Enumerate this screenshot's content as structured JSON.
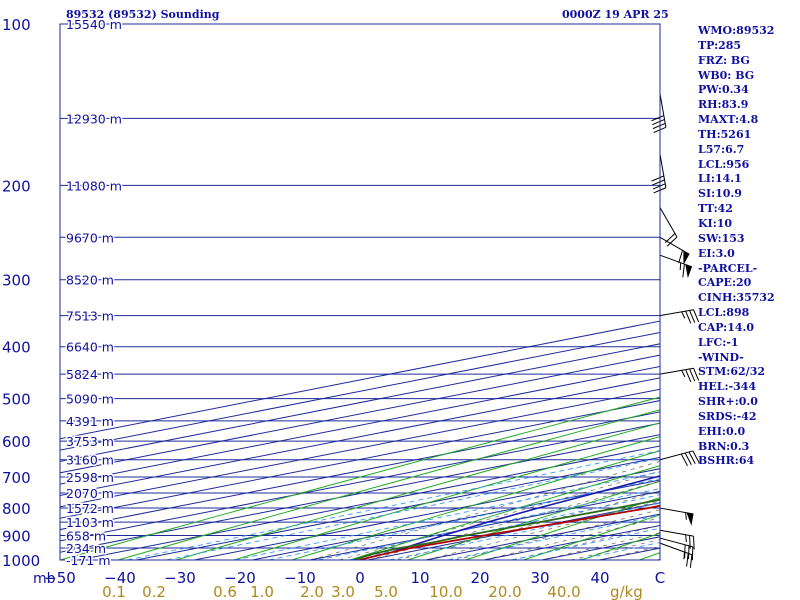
{
  "chart_data": {
    "type": "skew-t",
    "title_left": "89532 (89532) Sounding",
    "title_right": "0000Z 19 APR 25",
    "units_left": "mb",
    "units_right": "g/kg",
    "pressure_levels": [
      {
        "p": 100,
        "label": "100",
        "height": "15540 m"
      },
      {
        "p": 150,
        "label": "",
        "height": "12930 m"
      },
      {
        "p": 200,
        "label": "200",
        "height": "11080 m"
      },
      {
        "p": 250,
        "label": "",
        "height": "9670 m"
      },
      {
        "p": 300,
        "label": "300",
        "height": "8520 m"
      },
      {
        "p": 350,
        "label": "",
        "height": "7513 m"
      },
      {
        "p": 400,
        "label": "400",
        "height": "6640 m"
      },
      {
        "p": 450,
        "label": "",
        "height": "5824 m"
      },
      {
        "p": 500,
        "label": "500",
        "height": "5090 m"
      },
      {
        "p": 550,
        "label": "",
        "height": "4391 m"
      },
      {
        "p": 600,
        "label": "600",
        "height": "3753 m"
      },
      {
        "p": 650,
        "label": "",
        "height": "3160 m"
      },
      {
        "p": 700,
        "label": "700",
        "height": "2598 m"
      },
      {
        "p": 750,
        "label": "",
        "height": "2070 m"
      },
      {
        "p": 800,
        "label": "800",
        "height": "1572 m"
      },
      {
        "p": 850,
        "label": "",
        "height": "1103 m"
      },
      {
        "p": 900,
        "label": "900",
        "height": "658 m"
      },
      {
        "p": 950,
        "label": "",
        "height": "234 m"
      },
      {
        "p": 1000,
        "label": "1000",
        "height": "-171 m"
      }
    ],
    "temp_ticks": [
      {
        "t": -50,
        "label": "−50"
      },
      {
        "t": -40,
        "label": "−40"
      },
      {
        "t": -30,
        "label": "−30"
      },
      {
        "t": -20,
        "label": "−20"
      },
      {
        "t": -10,
        "label": "−10"
      },
      {
        "t": 0,
        "label": "0"
      },
      {
        "t": 10,
        "label": "10"
      },
      {
        "t": 20,
        "label": "20"
      },
      {
        "t": 30,
        "label": "30"
      },
      {
        "t": 40,
        "label": "40"
      },
      {
        "t": 50,
        "label": "C"
      }
    ],
    "mixing_ratio_labels": [
      {
        "w": 0.1,
        "label": "0.1"
      },
      {
        "w": 0.2,
        "label": "0.2"
      },
      {
        "w": 0.6,
        "label": "0.6"
      },
      {
        "w": 1.0,
        "label": "1.0"
      },
      {
        "w": 2.0,
        "label": "2.0"
      },
      {
        "w": 3.0,
        "label": "3.0"
      },
      {
        "w": 5.0,
        "label": "5.0"
      },
      {
        "w": 10.0,
        "label": "10.0"
      },
      {
        "w": 20.0,
        "label": "20.0"
      },
      {
        "w": 40.0,
        "label": "40.0"
      }
    ],
    "mixing_ratio_lines": [
      0.1,
      0.2,
      0.6,
      1.0,
      2.0,
      3.0,
      5.0,
      10.0,
      20.0,
      40.0
    ],
    "temperature_profile": [
      [
        1000,
        -1.5
      ],
      [
        975,
        -2.5
      ],
      [
        950,
        -3.2
      ],
      [
        925,
        -2.4
      ],
      [
        900,
        -1.6
      ],
      [
        850,
        0.7
      ],
      [
        800,
        2.6
      ],
      [
        700,
        2.0
      ],
      [
        600,
        1.6
      ],
      [
        500,
        -5.4
      ],
      [
        400,
        -11.8
      ],
      [
        300,
        -23.3
      ],
      [
        290,
        -24.0
      ],
      [
        250,
        -17.4
      ],
      [
        200,
        -12.3
      ],
      [
        150,
        -5.9
      ],
      [
        130,
        -2.5
      ],
      [
        115,
        -0.2
      ],
      [
        100,
        0.7
      ]
    ],
    "dewpoint_profile": [
      [
        1000,
        -2.5
      ],
      [
        975,
        -4.5
      ],
      [
        950,
        -5.2
      ],
      [
        930,
        -4.3
      ],
      [
        900,
        -4.7
      ],
      [
        850,
        -3.8
      ],
      [
        800,
        -2.9
      ],
      [
        750,
        -2.5
      ],
      [
        700,
        -3.0
      ],
      [
        650,
        -3.5
      ],
      [
        600,
        -4.8
      ],
      [
        550,
        -7.5
      ],
      [
        500,
        -11.4
      ],
      [
        450,
        -14.5
      ],
      [
        400,
        -17.0
      ]
    ],
    "parcel_profile": [
      [
        960,
        -3.5
      ],
      [
        900,
        -8.6
      ],
      [
        850,
        -12.7
      ],
      [
        800,
        -16.4
      ],
      [
        700,
        -23.4
      ],
      [
        600,
        -31.8
      ],
      [
        500,
        -42.0
      ],
      [
        400,
        -54.3
      ],
      [
        300,
        -69.3
      ],
      [
        250,
        -78.4
      ],
      [
        200,
        -89.1
      ],
      [
        150,
        -101.8
      ],
      [
        100,
        -117.8
      ]
    ],
    "wind_barbs": [
      {
        "p": 930,
        "dir": 290,
        "kt": 25
      },
      {
        "p": 910,
        "dir": 285,
        "kt": 30
      },
      {
        "p": 880,
        "dir": 280,
        "kt": 25
      },
      {
        "p": 800,
        "dir": 280,
        "kt": 55
      },
      {
        "p": 650,
        "dir": 255,
        "kt": 40
      },
      {
        "p": 450,
        "dir": 260,
        "kt": 35
      },
      {
        "p": 350,
        "dir": 260,
        "kt": 35
      },
      {
        "p": 270,
        "dir": 290,
        "kt": 65
      },
      {
        "p": 250,
        "dir": 300,
        "kt": 60
      },
      {
        "p": 220,
        "dir": 330,
        "kt": 20
      },
      {
        "p": 175,
        "dir": 350,
        "kt": 40
      },
      {
        "p": 135,
        "dir": 350,
        "kt": 40
      }
    ],
    "colors": {
      "isobar": "#1e2a9a",
      "isotherm": "#1e2a9a",
      "dry_adiabat": "#22aa22",
      "moist_adiabat": "#3a3a2a",
      "mixing_ratio": "#3399ff",
      "temperature": "#b00000",
      "dewpoint": "#2a6a1a",
      "parcel": "#1a1aaa",
      "barb": "#000000",
      "label_blue": "#1010a0",
      "label_gold": "#b08820"
    }
  },
  "indices": [
    "WMO:89532",
    "TP:285",
    "FRZ: BG",
    "WB0: BG",
    "PW:0.34",
    "RH:83.9",
    "MAXT:4.8",
    "TH:5261",
    "L57:6.7",
    "LCL:956",
    "LI:14.1",
    "SI:10.9",
    "TT:42",
    "KI:10",
    "SW:153",
    "EI:3.0",
    "-PARCEL-",
    "CAPE:20",
    "CINH:35732",
    "LCL:898",
    "CAP:14.0",
    "LFC:-1",
    "-WIND-",
    "STM:62/32",
    "HEL:-344",
    "SHR+:0.0",
    "SRDS:-42",
    "EHI:0.0",
    "BRN:0.3",
    "BSHR:64"
  ]
}
